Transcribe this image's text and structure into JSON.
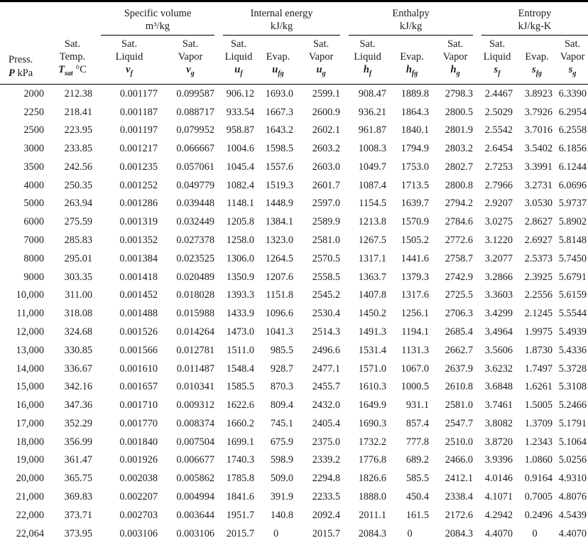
{
  "table": {
    "groups": [
      {
        "title": "Specific volume",
        "unit": "m³/kg"
      },
      {
        "title": "Internal energy",
        "unit": "kJ/kg"
      },
      {
        "title": "Enthalpy",
        "unit": "kJ/kg"
      },
      {
        "title": "Entropy",
        "unit": "kJ/kg-K"
      }
    ],
    "columns": [
      {
        "id": "pressure",
        "lines": [
          "Press."
        ],
        "sym": {
          "b": "P",
          "r": " kPa"
        }
      },
      {
        "id": "sat-temp",
        "lines": [
          "Sat.",
          "Temp."
        ],
        "sym": {
          "b": "T",
          "s": "sat",
          "r": " °C"
        }
      },
      {
        "id": "sat-liquid-vf",
        "lines": [
          "Sat.",
          "Liquid"
        ],
        "sym": {
          "b": "v",
          "s": "f"
        }
      },
      {
        "id": "sat-vapor-vg",
        "lines": [
          "Sat.",
          "Vapor"
        ],
        "sym": {
          "b": "v",
          "s": "g"
        }
      },
      {
        "id": "sat-liquid-uf",
        "lines": [
          "Sat.",
          "Liquid"
        ],
        "sym": {
          "b": "u",
          "s": "f"
        }
      },
      {
        "id": "evap-ufg",
        "lines": [
          "Evap."
        ],
        "sym": {
          "b": "u",
          "s": "fg"
        }
      },
      {
        "id": "sat-vapor-ug",
        "lines": [
          "Sat.",
          "Vapor"
        ],
        "sym": {
          "b": "u",
          "s": "g"
        }
      },
      {
        "id": "sat-liquid-hf",
        "lines": [
          "Sat.",
          "Liquid"
        ],
        "sym": {
          "b": "h",
          "s": "f"
        }
      },
      {
        "id": "evap-hfg",
        "lines": [
          "Evap."
        ],
        "sym": {
          "b": "h",
          "s": "fg"
        }
      },
      {
        "id": "sat-vapor-hg",
        "lines": [
          "Sat.",
          "Vapor"
        ],
        "sym": {
          "b": "h",
          "s": "g"
        }
      },
      {
        "id": "sat-liquid-sf",
        "lines": [
          "Sat.",
          "Liquid"
        ],
        "sym": {
          "b": "s",
          "s": "f"
        }
      },
      {
        "id": "evap-sfg",
        "lines": [
          "Evap."
        ],
        "sym": {
          "b": "s",
          "s": "fg"
        }
      },
      {
        "id": "sat-vapor-sg",
        "lines": [
          "Sat.",
          "Vapor"
        ],
        "sym": {
          "b": "s",
          "s": "g"
        }
      }
    ],
    "rows": [
      [
        "2000",
        "212.38",
        "0.001177",
        "0.099587",
        "906.12",
        "1693.0",
        "2599.1",
        "908.47",
        "1889.8",
        "2798.3",
        "2.4467",
        "3.8923",
        "6.3390"
      ],
      [
        "2250",
        "218.41",
        "0.001187",
        "0.088717",
        "933.54",
        "1667.3",
        "2600.9",
        "936.21",
        "1864.3",
        "2800.5",
        "2.5029",
        "3.7926",
        "6.2954"
      ],
      [
        "2500",
        "223.95",
        "0.001197",
        "0.079952",
        "958.87",
        "1643.2",
        "2602.1",
        "961.87",
        "1840.1",
        "2801.9",
        "2.5542",
        "3.7016",
        "6.2558"
      ],
      [
        "3000",
        "233.85",
        "0.001217",
        "0.066667",
        "1004.6",
        "1598.5",
        "2603.2",
        "1008.3",
        "1794.9",
        "2803.2",
        "2.6454",
        "3.5402",
        "6.1856"
      ],
      [
        "3500",
        "242.56",
        "0.001235",
        "0.057061",
        "1045.4",
        "1557.6",
        "2603.0",
        "1049.7",
        "1753.0",
        "2802.7",
        "2.7253",
        "3.3991",
        "6.1244"
      ],
      [
        "4000",
        "250.35",
        "0.001252",
        "0.049779",
        "1082.4",
        "1519.3",
        "2601.7",
        "1087.4",
        "1713.5",
        "2800.8",
        "2.7966",
        "3.2731",
        "6.0696"
      ],
      [
        "5000",
        "263.94",
        "0.001286",
        "0.039448",
        "1148.1",
        "1448.9",
        "2597.0",
        "1154.5",
        "1639.7",
        "2794.2",
        "2.9207",
        "3.0530",
        "5.9737"
      ],
      [
        "6000",
        "275.59",
        "0.001319",
        "0.032449",
        "1205.8",
        "1384.1",
        "2589.9",
        "1213.8",
        "1570.9",
        "2784.6",
        "3.0275",
        "2.8627",
        "5.8902"
      ],
      [
        "7000",
        "285.83",
        "0.001352",
        "0.027378",
        "1258.0",
        "1323.0",
        "2581.0",
        "1267.5",
        "1505.2",
        "2772.6",
        "3.1220",
        "2.6927",
        "5.8148"
      ],
      [
        "8000",
        "295.01",
        "0.001384",
        "0.023525",
        "1306.0",
        "1264.5",
        "2570.5",
        "1317.1",
        "1441.6",
        "2758.7",
        "3.2077",
        "2.5373",
        "5.7450"
      ],
      [
        "9000",
        "303.35",
        "0.001418",
        "0.020489",
        "1350.9",
        "1207.6",
        "2558.5",
        "1363.7",
        "1379.3",
        "2742.9",
        "3.2866",
        "2.3925",
        "5.6791"
      ],
      [
        "10,000",
        "311.00",
        "0.001452",
        "0.018028",
        "1393.3",
        "1151.8",
        "2545.2",
        "1407.8",
        "1317.6",
        "2725.5",
        "3.3603",
        "2.2556",
        "5.6159"
      ],
      [
        "11,000",
        "318.08",
        "0.001488",
        "0.015988",
        "1433.9",
        "1096.6",
        "2530.4",
        "1450.2",
        "1256.1",
        "2706.3",
        "3.4299",
        "2.1245",
        "5.5544"
      ],
      [
        "12,000",
        "324.68",
        "0.001526",
        "0.014264",
        "1473.0",
        "1041.3",
        "2514.3",
        "1491.3",
        "1194.1",
        "2685.4",
        "3.4964",
        "1.9975",
        "5.4939"
      ],
      [
        "13,000",
        "330.85",
        "0.001566",
        "0.012781",
        "1511.0",
        "985.5",
        "2496.6",
        "1531.4",
        "1131.3",
        "2662.7",
        "3.5606",
        "1.8730",
        "5.4336"
      ],
      [
        "14,000",
        "336.67",
        "0.001610",
        "0.011487",
        "1548.4",
        "928.7",
        "2477.1",
        "1571.0",
        "1067.0",
        "2637.9",
        "3.6232",
        "1.7497",
        "5.3728"
      ],
      [
        "15,000",
        "342.16",
        "0.001657",
        "0.010341",
        "1585.5",
        "870.3",
        "2455.7",
        "1610.3",
        "1000.5",
        "2610.8",
        "3.6848",
        "1.6261",
        "5.3108"
      ],
      [
        "16,000",
        "347.36",
        "0.001710",
        "0.009312",
        "1622.6",
        "809.4",
        "2432.0",
        "1649.9",
        "931.1",
        "2581.0",
        "3.7461",
        "1.5005",
        "5.2466"
      ],
      [
        "17,000",
        "352.29",
        "0.001770",
        "0.008374",
        "1660.2",
        "745.1",
        "2405.4",
        "1690.3",
        "857.4",
        "2547.7",
        "3.8082",
        "1.3709",
        "5.1791"
      ],
      [
        "18,000",
        "356.99",
        "0.001840",
        "0.007504",
        "1699.1",
        "675.9",
        "2375.0",
        "1732.2",
        "777.8",
        "2510.0",
        "3.8720",
        "1.2343",
        "5.1064"
      ],
      [
        "19,000",
        "361.47",
        "0.001926",
        "0.006677",
        "1740.3",
        "598.9",
        "2339.2",
        "1776.8",
        "689.2",
        "2466.0",
        "3.9396",
        "1.0860",
        "5.0256"
      ],
      [
        "20,000",
        "365.75",
        "0.002038",
        "0.005862",
        "1785.8",
        "509.0",
        "2294.8",
        "1826.6",
        "585.5",
        "2412.1",
        "4.0146",
        "0.9164",
        "4.9310"
      ],
      [
        "21,000",
        "369.83",
        "0.002207",
        "0.004994",
        "1841.6",
        "391.9",
        "2233.5",
        "1888.0",
        "450.4",
        "2338.4",
        "4.1071",
        "0.7005",
        "4.8076"
      ],
      [
        "22,000",
        "373.71",
        "0.002703",
        "0.003644",
        "1951.7",
        "140.8",
        "2092.4",
        "2011.1",
        "161.5",
        "2172.6",
        "4.2942",
        "0.2496",
        "4.5439"
      ],
      [
        "22,064",
        "373.95",
        "0.003106",
        "0.003106",
        "2015.7",
        "0",
        "2015.7",
        "2084.3",
        "0",
        "2084.3",
        "4.4070",
        "0",
        "4.4070"
      ]
    ]
  }
}
